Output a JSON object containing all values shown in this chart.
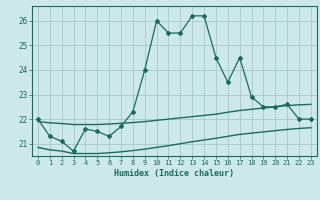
{
  "xlabel": "Humidex (Indice chaleur)",
  "bg_color": "#cce8e8",
  "grid_color": "#aacccc",
  "line_color": "#1a6b5a",
  "x": [
    0,
    1,
    2,
    3,
    4,
    5,
    6,
    7,
    8,
    9,
    10,
    11,
    12,
    13,
    14,
    15,
    16,
    17,
    18,
    19,
    20,
    21,
    22,
    23
  ],
  "y_main": [
    22.0,
    21.3,
    21.1,
    20.7,
    21.6,
    21.5,
    21.3,
    21.7,
    22.3,
    24.0,
    26.0,
    25.5,
    25.5,
    26.2,
    26.2,
    24.5,
    23.5,
    24.5,
    22.9,
    22.5,
    22.5,
    22.6,
    22.0,
    22.0
  ],
  "y_upper": [
    21.9,
    21.85,
    21.82,
    21.78,
    21.78,
    21.78,
    21.8,
    21.83,
    21.86,
    21.9,
    21.95,
    22.0,
    22.05,
    22.1,
    22.15,
    22.2,
    22.28,
    22.35,
    22.4,
    22.45,
    22.5,
    22.55,
    22.58,
    22.6
  ],
  "y_lower": [
    20.85,
    20.75,
    20.7,
    20.6,
    20.6,
    20.6,
    20.63,
    20.67,
    20.72,
    20.78,
    20.85,
    20.92,
    21.0,
    21.08,
    21.15,
    21.22,
    21.3,
    21.38,
    21.43,
    21.48,
    21.53,
    21.58,
    21.62,
    21.65
  ],
  "ylim": [
    20.5,
    26.6
  ],
  "yticks": [
    21,
    22,
    23,
    24,
    25,
    26
  ],
  "xlim": [
    -0.5,
    23.5
  ],
  "xticks": [
    0,
    1,
    2,
    3,
    4,
    5,
    6,
    7,
    8,
    9,
    10,
    11,
    12,
    13,
    14,
    15,
    16,
    17,
    18,
    19,
    20,
    21,
    22,
    23
  ]
}
